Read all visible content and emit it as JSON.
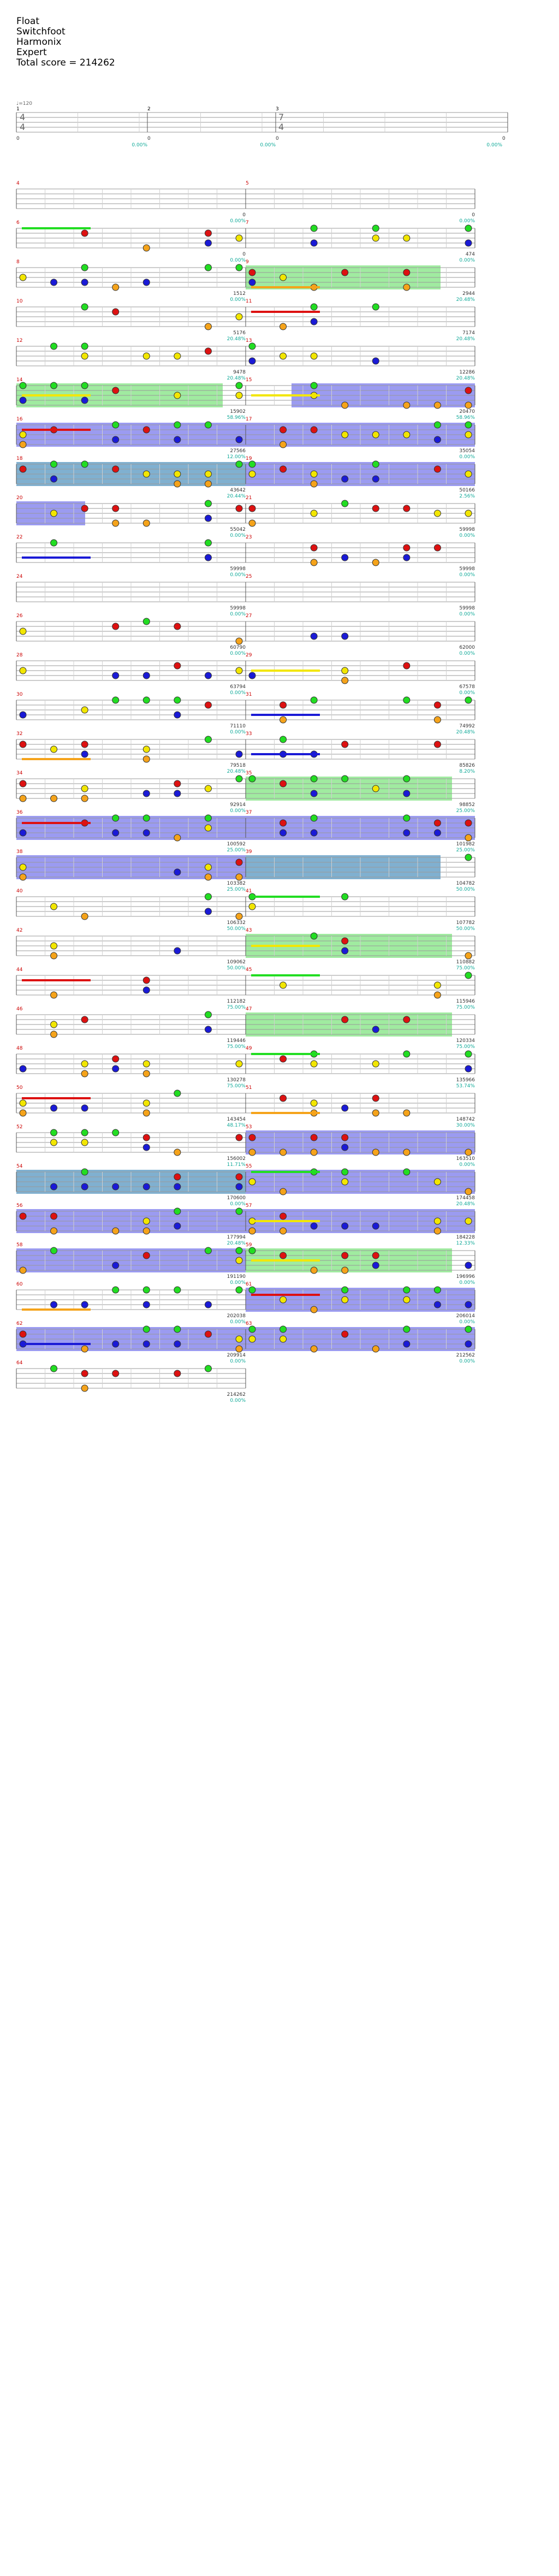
{
  "song": {
    "title": "Float",
    "artist": "Switchfoot",
    "charter": "Harmonix",
    "difficulty": "Expert",
    "total_score_label": "Total score = 214262"
  },
  "colors": {
    "green": "#22dd22",
    "red": "#dd1111",
    "yellow": "#f2e600",
    "blue": "#1a1ad6",
    "orange": "#f5a31a",
    "overdrive_fill": "#8fe88f",
    "activation_fill": "#8a8aee",
    "overlap_fill": "#6aa2c8",
    "measure_number": "#cc0000",
    "score_text": "#333333",
    "multiplier_text": "#11aa99",
    "staff_line": "#9a9a9a"
  },
  "intro": {
    "tempo_label": "♩=120",
    "time_signatures": [
      "4/4",
      "7/4"
    ],
    "measure_numbers": [
      "1",
      "2",
      "3"
    ],
    "scores": [
      "0",
      "0",
      "0",
      "0"
    ],
    "percents": [
      "0.00%",
      "0.00%",
      "0.00%"
    ]
  },
  "measures": [
    {
      "n": "4",
      "score": "0",
      "pct": "0.00%"
    },
    {
      "n": "5",
      "score": "0",
      "pct": "0.00%"
    },
    {
      "n": "6",
      "score": "0",
      "pct": "0.00%"
    },
    {
      "n": "7",
      "score": "474",
      "pct": "0.00%"
    },
    {
      "n": "8",
      "score": "1512",
      "pct": "0.00%"
    },
    {
      "n": "9",
      "score": "2944",
      "pct": "20.48%"
    },
    {
      "n": "10",
      "score": "5176",
      "pct": "20.48%"
    },
    {
      "n": "11",
      "score": "7174",
      "pct": "20.48%"
    },
    {
      "n": "12",
      "score": "9478",
      "pct": "20.48%"
    },
    {
      "n": "13",
      "score": "12286",
      "pct": "20.48%"
    },
    {
      "n": "14",
      "score": "15902",
      "pct": "58.96%"
    },
    {
      "n": "15",
      "score": "20470",
      "pct": "58.96%"
    },
    {
      "n": "16",
      "score": "27566",
      "pct": "12.00%"
    },
    {
      "n": "17",
      "score": "35054",
      "pct": "0.00%"
    },
    {
      "n": "18",
      "score": "43642",
      "pct": "20.44%"
    },
    {
      "n": "19",
      "score": "50166",
      "pct": "2.56%"
    },
    {
      "n": "20",
      "score": "55042",
      "pct": "0.00%"
    },
    {
      "n": "21",
      "score": "59998",
      "pct": "0.00%"
    },
    {
      "n": "22",
      "score": "59998",
      "pct": "0.00%"
    },
    {
      "n": "23",
      "score": "59998",
      "pct": "0.00%"
    },
    {
      "n": "24",
      "score": "59998",
      "pct": "0.00%"
    },
    {
      "n": "25",
      "score": "59998",
      "pct": "0.00%"
    },
    {
      "n": "26",
      "score": "60790",
      "pct": "0.00%"
    },
    {
      "n": "27",
      "score": "62000",
      "pct": "0.00%"
    },
    {
      "n": "28",
      "score": "63794",
      "pct": "0.00%"
    },
    {
      "n": "29",
      "score": "67578",
      "pct": "0.00%"
    },
    {
      "n": "30",
      "score": "71110",
      "pct": "0.00%"
    },
    {
      "n": "31",
      "score": "74992",
      "pct": "20.48%"
    },
    {
      "n": "32",
      "score": "79518",
      "pct": "20.48%"
    },
    {
      "n": "33",
      "score": "85826",
      "pct": "8.20%"
    },
    {
      "n": "34",
      "score": "92914",
      "pct": "0.00%"
    },
    {
      "n": "35",
      "score": "98852",
      "pct": "25.00%"
    },
    {
      "n": "36",
      "score": "100592",
      "pct": "25.00%"
    },
    {
      "n": "37",
      "score": "101982",
      "pct": "25.00%"
    },
    {
      "n": "38",
      "score": "103382",
      "pct": "25.00%"
    },
    {
      "n": "39",
      "score": "104782",
      "pct": "50.00%"
    },
    {
      "n": "40",
      "score": "106332",
      "pct": "50.00%"
    },
    {
      "n": "41",
      "score": "107782",
      "pct": "50.00%"
    },
    {
      "n": "42",
      "score": "109062",
      "pct": "50.00%"
    },
    {
      "n": "43",
      "score": "110882",
      "pct": "75.00%"
    },
    {
      "n": "44",
      "score": "112182",
      "pct": "75.00%"
    },
    {
      "n": "45",
      "score": "115946",
      "pct": "75.00%"
    },
    {
      "n": "46",
      "score": "119446",
      "pct": "75.00%"
    },
    {
      "n": "47",
      "score": "120334",
      "pct": "75.00%"
    },
    {
      "n": "48",
      "score": "130278",
      "pct": "75.00%"
    },
    {
      "n": "49",
      "score": "135966",
      "pct": "53.74%"
    },
    {
      "n": "50",
      "score": "143454",
      "pct": "48.17%"
    },
    {
      "n": "51",
      "score": "148742",
      "pct": "30.00%"
    },
    {
      "n": "52",
      "score": "156002",
      "pct": "11.71%"
    },
    {
      "n": "53",
      "score": "163510",
      "pct": "0.00%"
    },
    {
      "n": "54",
      "score": "170600",
      "pct": "0.00%"
    },
    {
      "n": "55",
      "score": "174458",
      "pct": "20.48%"
    },
    {
      "n": "56",
      "score": "177994",
      "pct": "20.48%"
    },
    {
      "n": "57",
      "score": "184228",
      "pct": "12.33%"
    },
    {
      "n": "58",
      "score": "191190",
      "pct": "0.00%"
    },
    {
      "n": "59",
      "score": "196996",
      "pct": "0.00%"
    },
    {
      "n": "60",
      "score": "202038",
      "pct": "0.00%"
    },
    {
      "n": "61",
      "score": "206014",
      "pct": "0.00%"
    },
    {
      "n": "62",
      "score": "209914",
      "pct": "0.00%"
    },
    {
      "n": "63",
      "score": "212562",
      "pct": "0.00%"
    },
    {
      "n": "64",
      "score": "214262",
      "pct": "0.00%"
    }
  ]
}
